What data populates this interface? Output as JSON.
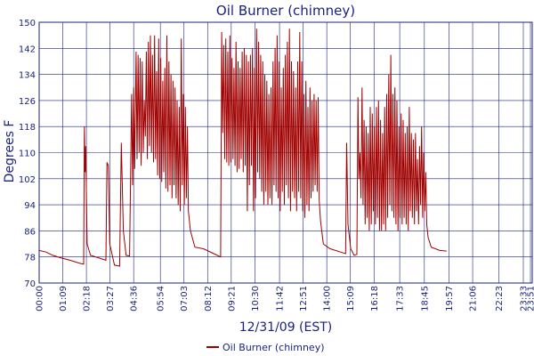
{
  "chart_data": {
    "type": "line",
    "title": "Oil Burner (chimney)",
    "xlabel": "12/31/09 (EST)",
    "ylabel": "Degrees F",
    "ylim": [
      70,
      150
    ],
    "xlim": [
      "00:00",
      "24:00"
    ],
    "yticks": [
      70,
      78,
      86,
      94,
      102,
      110,
      118,
      126,
      134,
      142,
      150
    ],
    "xticks": [
      "00:00",
      "01:09",
      "02:18",
      "03:27",
      "04:36",
      "05:54",
      "07:03",
      "08:12",
      "09:21",
      "10:30",
      "11:42",
      "12:51",
      "14:00",
      "15:09",
      "16:18",
      "17:33",
      "18:45",
      "19:57",
      "21:06",
      "22:23",
      "23:33",
      "23:51"
    ],
    "grid": true,
    "legend": "bottom-center",
    "colors": {
      "series": "#a00000",
      "axes": "#1a237e",
      "grid": "#1a237e"
    },
    "series": [
      {
        "name": "Oil Burner (chimney)",
        "points": [
          [
            "00:00",
            80
          ],
          [
            "00:20",
            79.5
          ],
          [
            "00:40",
            78.5
          ],
          [
            "01:00",
            77.8
          ],
          [
            "01:30",
            77
          ],
          [
            "02:00",
            76
          ],
          [
            "02:10",
            75.8
          ],
          [
            "02:12",
            118
          ],
          [
            "02:14",
            104
          ],
          [
            "02:16",
            112
          ],
          [
            "02:20",
            82
          ],
          [
            "02:30",
            78.5
          ],
          [
            "03:00",
            77.5
          ],
          [
            "03:15",
            77
          ],
          [
            "03:18",
            107
          ],
          [
            "03:22",
            106
          ],
          [
            "03:26",
            82
          ],
          [
            "03:40",
            75.5
          ],
          [
            "03:55",
            75.2
          ],
          [
            "04:00",
            113
          ],
          [
            "04:06",
            86
          ],
          [
            "04:14",
            78.5
          ],
          [
            "04:24",
            78.3
          ],
          [
            "04:30",
            128
          ],
          [
            "04:33",
            100
          ],
          [
            "04:36",
            130
          ],
          [
            "04:39",
            105
          ],
          [
            "04:43",
            141
          ],
          [
            "04:46",
            108
          ],
          [
            "04:49",
            140
          ],
          [
            "04:52",
            110
          ],
          [
            "04:55",
            139
          ],
          [
            "04:58",
            106
          ],
          [
            "05:01",
            138
          ],
          [
            "05:04",
            110
          ],
          [
            "05:07",
            126
          ],
          [
            "05:10",
            115
          ],
          [
            "05:13",
            141
          ],
          [
            "05:16",
            108
          ],
          [
            "05:19",
            144
          ],
          [
            "05:22",
            112
          ],
          [
            "05:25",
            146
          ],
          [
            "05:28",
            110
          ],
          [
            "05:31",
            140
          ],
          [
            "05:34",
            107
          ],
          [
            "05:37",
            146
          ],
          [
            "05:40",
            108
          ],
          [
            "05:43",
            135
          ],
          [
            "05:46",
            103
          ],
          [
            "05:49",
            145
          ],
          [
            "05:52",
            102
          ],
          [
            "05:55",
            139
          ],
          [
            "05:58",
            101
          ],
          [
            "06:01",
            132
          ],
          [
            "06:04",
            104
          ],
          [
            "06:07",
            136
          ],
          [
            "06:10",
            99
          ],
          [
            "06:13",
            146
          ],
          [
            "06:16",
            98
          ],
          [
            "06:19",
            138
          ],
          [
            "06:22",
            100
          ],
          [
            "06:25",
            134
          ],
          [
            "06:28",
            96
          ],
          [
            "06:31",
            132
          ],
          [
            "06:34",
            100
          ],
          [
            "06:37",
            130
          ],
          [
            "06:40",
            96
          ],
          [
            "06:43",
            126
          ],
          [
            "06:46",
            94
          ],
          [
            "06:49",
            124
          ],
          [
            "06:52",
            92
          ],
          [
            "06:55",
            145
          ],
          [
            "06:58",
            100
          ],
          [
            "07:01",
            128
          ],
          [
            "07:04",
            94
          ],
          [
            "07:07",
            124
          ],
          [
            "07:10",
            96
          ],
          [
            "07:13",
            118
          ],
          [
            "07:16",
            92
          ],
          [
            "07:22",
            86
          ],
          [
            "07:35",
            81
          ],
          [
            "08:00",
            80.5
          ],
          [
            "08:30",
            79
          ],
          [
            "08:50",
            78
          ],
          [
            "08:53",
            147
          ],
          [
            "08:56",
            116
          ],
          [
            "08:59",
            143
          ],
          [
            "09:02",
            108
          ],
          [
            "09:05",
            145
          ],
          [
            "09:08",
            107
          ],
          [
            "09:11",
            141
          ],
          [
            "09:14",
            106
          ],
          [
            "09:17",
            146
          ],
          [
            "09:20",
            107
          ],
          [
            "09:23",
            139
          ],
          [
            "09:26",
            108
          ],
          [
            "09:29",
            136
          ],
          [
            "09:32",
            106
          ],
          [
            "09:35",
            144
          ],
          [
            "09:38",
            104
          ],
          [
            "09:41",
            138
          ],
          [
            "09:44",
            105
          ],
          [
            "09:47",
            136
          ],
          [
            "09:50",
            108
          ],
          [
            "09:53",
            141
          ],
          [
            "09:56",
            104
          ],
          [
            "09:59",
            142
          ],
          [
            "10:02",
            106
          ],
          [
            "10:05",
            140
          ],
          [
            "10:08",
            92
          ],
          [
            "10:11",
            138
          ],
          [
            "10:14",
            100
          ],
          [
            "10:17",
            140
          ],
          [
            "10:20",
            106
          ],
          [
            "10:23",
            142
          ],
          [
            "10:26",
            92
          ],
          [
            "10:29",
            136
          ],
          [
            "10:32",
            96
          ],
          [
            "10:35",
            148
          ],
          [
            "10:38",
            104
          ],
          [
            "10:41",
            144
          ],
          [
            "10:44",
            102
          ],
          [
            "10:47",
            140
          ],
          [
            "10:50",
            98
          ],
          [
            "10:53",
            138
          ],
          [
            "10:56",
            94
          ],
          [
            "10:59",
            134
          ],
          [
            "11:02",
            98
          ],
          [
            "11:05",
            132
          ],
          [
            "11:08",
            94
          ],
          [
            "11:11",
            128
          ],
          [
            "11:14",
            96
          ],
          [
            "11:17",
            130
          ],
          [
            "11:20",
            94
          ],
          [
            "11:23",
            138
          ],
          [
            "11:26",
            100
          ],
          [
            "11:29",
            142
          ],
          [
            "11:32",
            98
          ],
          [
            "11:35",
            146
          ],
          [
            "11:38",
            96
          ],
          [
            "11:41",
            138
          ],
          [
            "11:44",
            92
          ],
          [
            "11:47",
            130
          ],
          [
            "11:50",
            98
          ],
          [
            "11:53",
            136
          ],
          [
            "11:56",
            94
          ],
          [
            "11:59",
            140
          ],
          [
            "12:02",
            100
          ],
          [
            "12:05",
            144
          ],
          [
            "12:08",
            96
          ],
          [
            "12:11",
            148
          ],
          [
            "12:14",
            92
          ],
          [
            "12:17",
            138
          ],
          [
            "12:20",
            98
          ],
          [
            "12:23",
            135
          ],
          [
            "12:26",
            96
          ],
          [
            "12:29",
            130
          ],
          [
            "12:32",
            92
          ],
          [
            "12:35",
            138
          ],
          [
            "12:38",
            98
          ],
          [
            "12:41",
            147
          ],
          [
            "12:44",
            96
          ],
          [
            "12:47",
            138
          ],
          [
            "12:50",
            92
          ],
          [
            "12:53",
            128
          ],
          [
            "12:56",
            90
          ],
          [
            "12:59",
            132
          ],
          [
            "13:02",
            94
          ],
          [
            "13:05",
            124
          ],
          [
            "13:08",
            92
          ],
          [
            "13:11",
            130
          ],
          [
            "13:14",
            96
          ],
          [
            "13:17",
            126
          ],
          [
            "13:20",
            98
          ],
          [
            "13:23",
            128
          ],
          [
            "13:26",
            100
          ],
          [
            "13:29",
            126
          ],
          [
            "13:32",
            98
          ],
          [
            "13:35",
            127
          ],
          [
            "13:38",
            95
          ],
          [
            "13:42",
            89
          ],
          [
            "13:50",
            82
          ],
          [
            "14:10",
            80.5
          ],
          [
            "14:40",
            79.5
          ],
          [
            "14:55",
            79
          ],
          [
            "14:58",
            113
          ],
          [
            "15:02",
            88
          ],
          [
            "15:10",
            80.5
          ],
          [
            "15:20",
            78.5
          ],
          [
            "15:28",
            78.8
          ],
          [
            "15:31",
            127
          ],
          [
            "15:34",
            102
          ],
          [
            "15:37",
            110
          ],
          [
            "15:40",
            96
          ],
          [
            "15:43",
            130
          ],
          [
            "15:46",
            94
          ],
          [
            "15:49",
            120
          ],
          [
            "15:52",
            88
          ],
          [
            "15:55",
            118
          ],
          [
            "15:58",
            90
          ],
          [
            "16:01",
            116
          ],
          [
            "16:04",
            86
          ],
          [
            "16:07",
            124
          ],
          [
            "16:10",
            88
          ],
          [
            "16:13",
            122
          ],
          [
            "16:16",
            92
          ],
          [
            "16:19",
            118
          ],
          [
            "16:22",
            88
          ],
          [
            "16:25",
            124
          ],
          [
            "16:28",
            90
          ],
          [
            "16:31",
            126
          ],
          [
            "16:34",
            86
          ],
          [
            "16:37",
            120
          ],
          [
            "16:40",
            86
          ],
          [
            "16:43",
            116
          ],
          [
            "16:46",
            88
          ],
          [
            "16:49",
            124
          ],
          [
            "16:52",
            86
          ],
          [
            "16:55",
            128
          ],
          [
            "16:58",
            90
          ],
          [
            "17:01",
            134
          ],
          [
            "17:04",
            94
          ],
          [
            "17:07",
            140
          ],
          [
            "17:10",
            92
          ],
          [
            "17:13",
            128
          ],
          [
            "17:16",
            90
          ],
          [
            "17:19",
            130
          ],
          [
            "17:22",
            88
          ],
          [
            "17:25",
            126
          ],
          [
            "17:28",
            86
          ],
          [
            "17:31",
            118
          ],
          [
            "17:34",
            90
          ],
          [
            "17:37",
            122
          ],
          [
            "17:40",
            88
          ],
          [
            "17:43",
            120
          ],
          [
            "17:46",
            90
          ],
          [
            "17:49",
            116
          ],
          [
            "17:52",
            88
          ],
          [
            "17:55",
            118
          ],
          [
            "17:58",
            86
          ],
          [
            "18:01",
            124
          ],
          [
            "18:04",
            92
          ],
          [
            "18:07",
            116
          ],
          [
            "18:10",
            90
          ],
          [
            "18:13",
            114
          ],
          [
            "18:16",
            88
          ],
          [
            "18:19",
            116
          ],
          [
            "18:22",
            92
          ],
          [
            "18:25",
            108
          ],
          [
            "18:28",
            88
          ],
          [
            "18:31",
            112
          ],
          [
            "18:34",
            94
          ],
          [
            "18:37",
            118
          ],
          [
            "18:40",
            90
          ],
          [
            "18:43",
            110
          ],
          [
            "18:46",
            92
          ],
          [
            "18:49",
            104
          ],
          [
            "18:52",
            88
          ],
          [
            "18:56",
            84
          ],
          [
            "19:05",
            81
          ],
          [
            "19:30",
            80
          ],
          [
            "19:50",
            79.8
          ]
        ]
      }
    ]
  }
}
